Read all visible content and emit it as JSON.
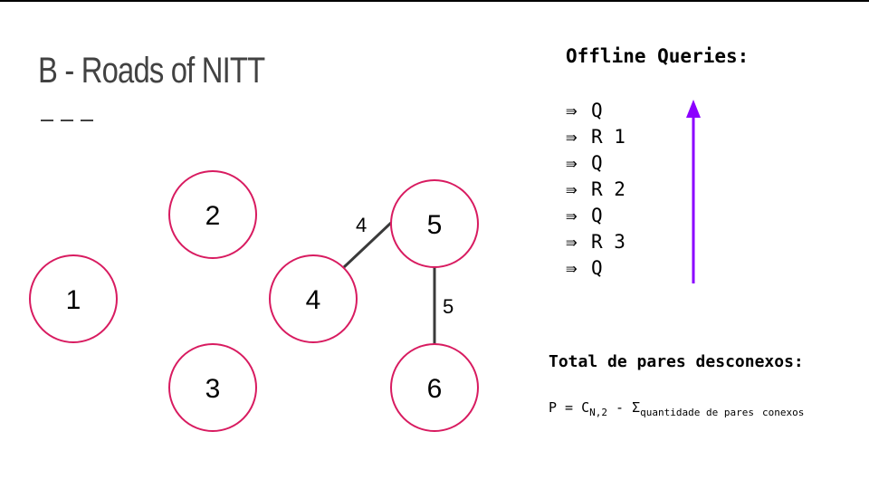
{
  "slide": {
    "title": "B - Roads of NITT"
  },
  "graph": {
    "nodes": [
      {
        "id": "1",
        "label": "1"
      },
      {
        "id": "2",
        "label": "2"
      },
      {
        "id": "3",
        "label": "3"
      },
      {
        "id": "4",
        "label": "4"
      },
      {
        "id": "5",
        "label": "5"
      },
      {
        "id": "6",
        "label": "6"
      }
    ],
    "edges": [
      {
        "from": "4",
        "to": "5",
        "weight": "4"
      },
      {
        "from": "5",
        "to": "6",
        "weight": "5"
      }
    ],
    "colors": {
      "node_stroke": "#d81b60",
      "edge": "#3a3a3a"
    }
  },
  "queries": {
    "heading": "Offline Queries:",
    "arrow_symbol": "⇛",
    "items": [
      {
        "text": "Q"
      },
      {
        "text": "R 1"
      },
      {
        "text": "Q"
      },
      {
        "text": "R 2"
      },
      {
        "text": "Q"
      },
      {
        "text": "R 3"
      },
      {
        "text": "Q"
      }
    ],
    "direction_arrow_color": "#8b00ff",
    "direction_arrow_icon": "arrow-up-icon"
  },
  "total": {
    "heading": "Total de pares desconexos:",
    "formula_main": "P = C",
    "formula_sub1": "N,2",
    "formula_mid": " - Σ",
    "formula_sub2": "quantidade de pares",
    "formula_tail": "conexos"
  }
}
